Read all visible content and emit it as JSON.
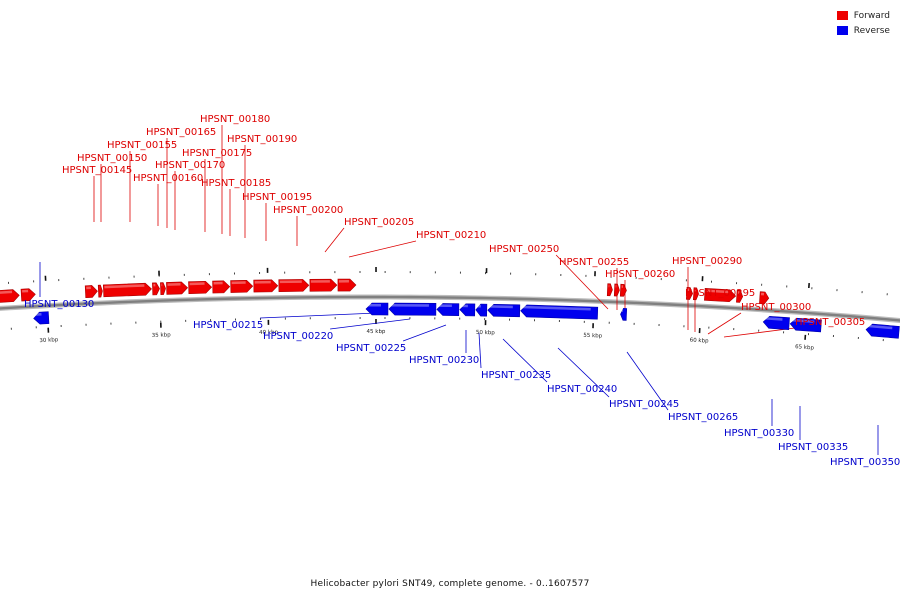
{
  "legend": {
    "forward_label": "Forward",
    "forward_color": "#ee0000",
    "reverse_label": "Reverse",
    "reverse_color": "#0000ee"
  },
  "caption": "Helicobacter pylori SNT49, complete genome. - 0..1607577",
  "backbone_color": "#808080",
  "kbp_marks": [
    {
      "label": "30 kbp"
    },
    {
      "label": "35 kbp"
    },
    {
      "label": "40 kbp"
    },
    {
      "label": "45 kbp"
    },
    {
      "label": "50 kbp"
    },
    {
      "label": "55 kbp"
    },
    {
      "label": "60 kbp"
    },
    {
      "label": "65 kbp"
    }
  ],
  "genes": [
    {
      "id": "HPSNT_00130",
      "strand": "reverse"
    },
    {
      "id": "HPSNT_00145",
      "strand": "forward"
    },
    {
      "id": "HPSNT_00150",
      "strand": "forward"
    },
    {
      "id": "HPSNT_00155",
      "strand": "forward"
    },
    {
      "id": "HPSNT_00160",
      "strand": "forward"
    },
    {
      "id": "HPSNT_00165",
      "strand": "forward"
    },
    {
      "id": "HPSNT_00170",
      "strand": "forward"
    },
    {
      "id": "HPSNT_00175",
      "strand": "forward"
    },
    {
      "id": "HPSNT_00180",
      "strand": "forward"
    },
    {
      "id": "HPSNT_00185",
      "strand": "forward"
    },
    {
      "id": "HPSNT_00190",
      "strand": "forward"
    },
    {
      "id": "HPSNT_00195",
      "strand": "forward"
    },
    {
      "id": "HPSNT_00200",
      "strand": "forward"
    },
    {
      "id": "HPSNT_00205",
      "strand": "forward"
    },
    {
      "id": "HPSNT_00210",
      "strand": "forward"
    },
    {
      "id": "HPSNT_00215",
      "strand": "reverse"
    },
    {
      "id": "HPSNT_00220",
      "strand": "reverse"
    },
    {
      "id": "HPSNT_00225",
      "strand": "reverse"
    },
    {
      "id": "HPSNT_00230",
      "strand": "reverse"
    },
    {
      "id": "HPSNT_00235",
      "strand": "reverse"
    },
    {
      "id": "HPSNT_00240",
      "strand": "reverse"
    },
    {
      "id": "HPSNT_00245",
      "strand": "reverse"
    },
    {
      "id": "HPSNT_00250",
      "strand": "forward"
    },
    {
      "id": "HPSNT_00255",
      "strand": "forward"
    },
    {
      "id": "HPSNT_00260",
      "strand": "forward"
    },
    {
      "id": "HPSNT_00265",
      "strand": "reverse"
    },
    {
      "id": "HPSNT_00290",
      "strand": "forward"
    },
    {
      "id": "HPSNT_00295",
      "strand": "forward"
    },
    {
      "id": "HPSNT_00300",
      "strand": "forward"
    },
    {
      "id": "HPSNT_00305",
      "strand": "forward"
    },
    {
      "id": "HPSNT_00330",
      "strand": "reverse"
    },
    {
      "id": "HPSNT_00335",
      "strand": "reverse"
    },
    {
      "id": "HPSNT_00350",
      "strand": "reverse"
    }
  ]
}
